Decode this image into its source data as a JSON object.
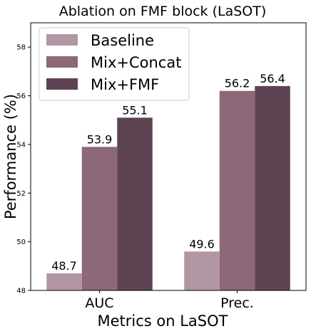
{
  "chart_data": {
    "type": "bar",
    "title": "Ablation on FMF block (LaSOT)",
    "xlabel": "Metrics on LaSOT",
    "ylabel": "Performance (%)",
    "categories": [
      "AUC",
      "Prec."
    ],
    "ylim": [
      48,
      59
    ],
    "yticks": [
      "48",
      "50",
      "52",
      "54",
      "56",
      "58"
    ],
    "grid": false,
    "legend_position": "top-left",
    "series": [
      {
        "name": "Baseline",
        "values": [
          48.7,
          49.6
        ],
        "labels": [
          "48.7",
          "49.6"
        ],
        "color": "#b396a3"
      },
      {
        "name": "Mix+Concat",
        "values": [
          53.9,
          56.2
        ],
        "labels": [
          "53.9",
          "56.2"
        ],
        "color": "#8d6878"
      },
      {
        "name": "Mix+FMF",
        "values": [
          55.1,
          56.4
        ],
        "labels": [
          "55.1",
          "56.4"
        ],
        "color": "#5e4453"
      }
    ]
  }
}
